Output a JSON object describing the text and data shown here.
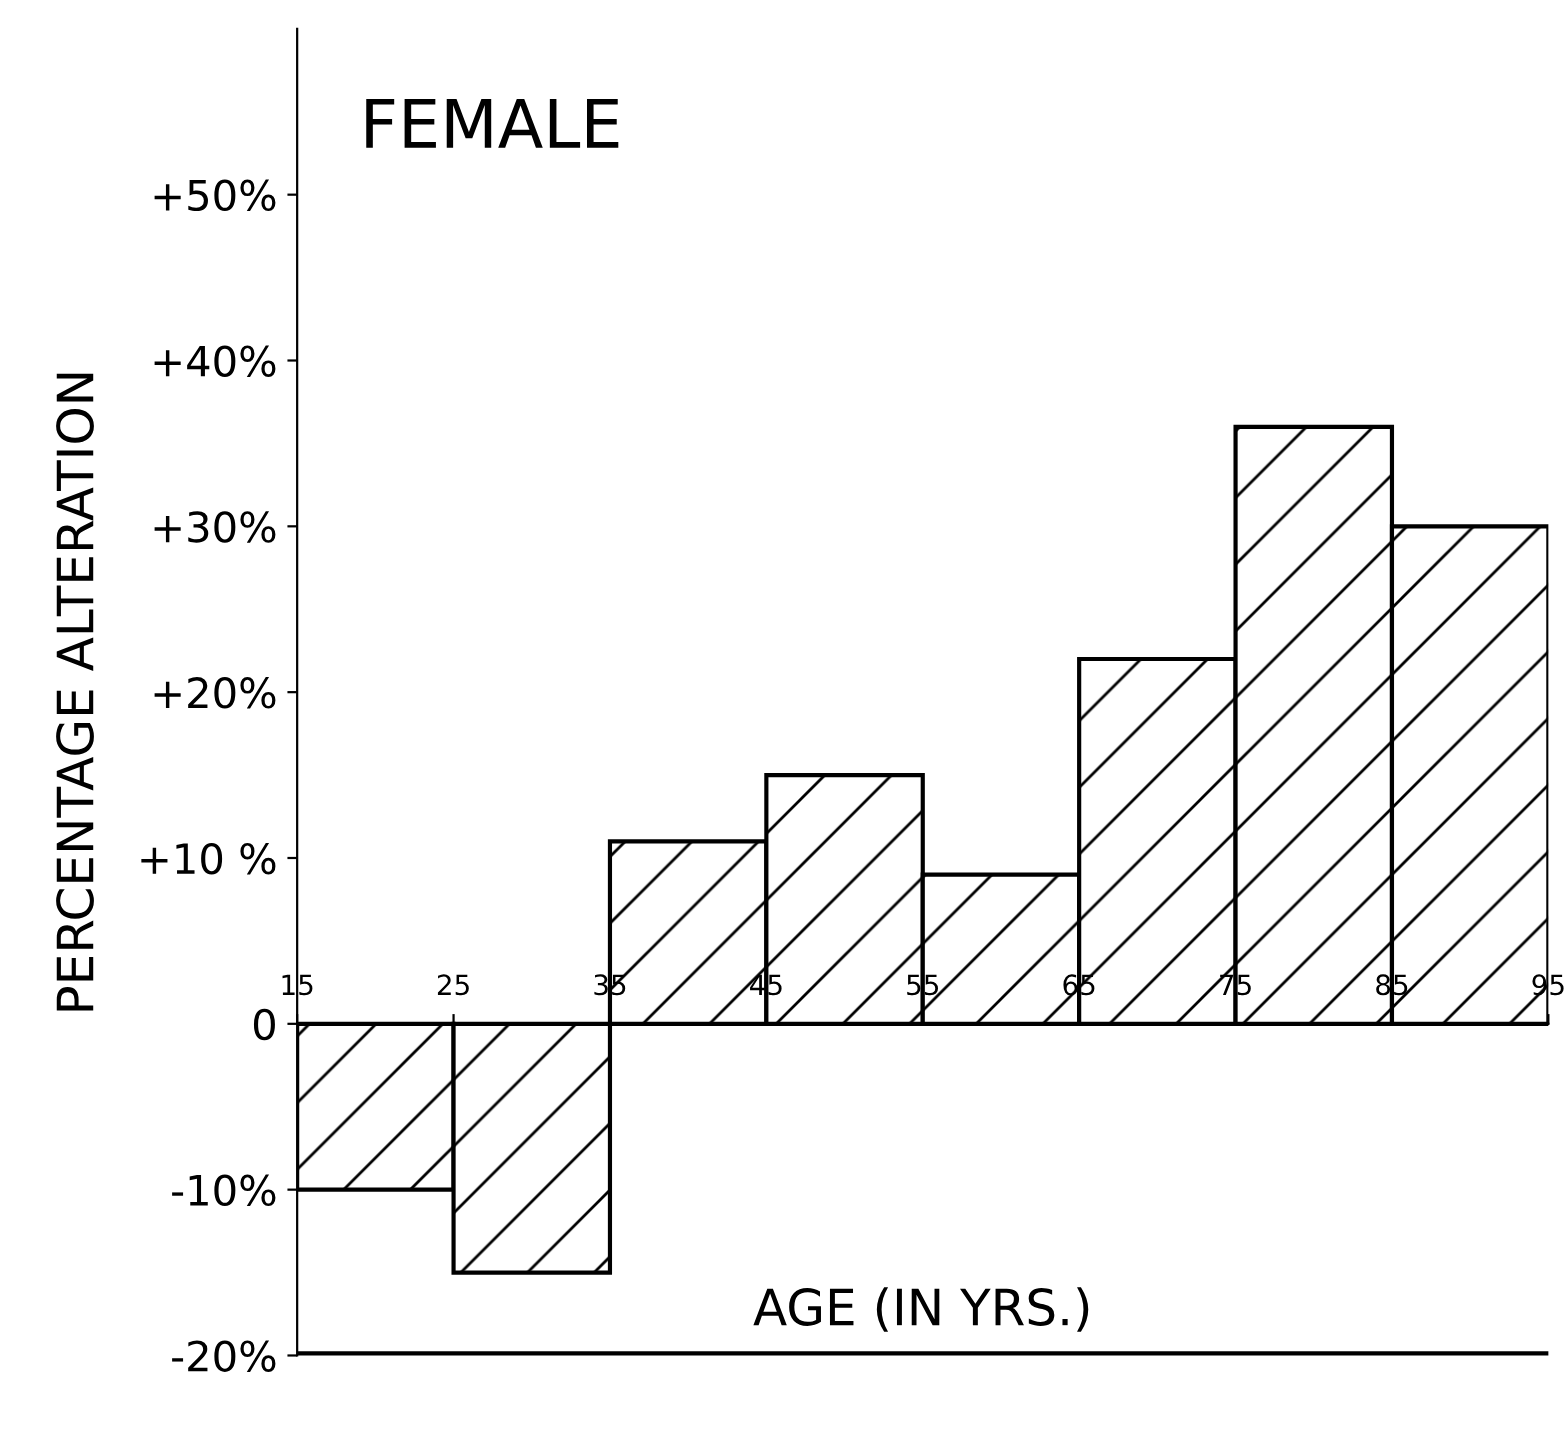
{
  "chart_data": {
    "type": "histogram",
    "title": "FEMALE",
    "xlabel": "AGE (IN YRS.)",
    "ylabel": "PERCENTAGE ALTERATION",
    "bins": [
      15,
      25,
      35,
      45,
      55,
      65,
      75,
      85,
      95
    ],
    "values": [
      -10,
      -15,
      11,
      15,
      9,
      22,
      36,
      30
    ],
    "color": "#000000",
    "xlim": [
      15,
      95
    ],
    "xticks": [
      15,
      25,
      35,
      45,
      55,
      65,
      75,
      85,
      95
    ],
    "ylim": [
      -20,
      60
    ],
    "yticks": [
      {
        "value": -20,
        "label": "-20%"
      },
      {
        "value": -10,
        "label": "-10%"
      },
      {
        "value": 0,
        "label": "0"
      },
      {
        "value": 10,
        "label": "+10 %"
      },
      {
        "value": 20,
        "label": "+20%"
      },
      {
        "value": 30,
        "label": "+30%"
      },
      {
        "value": 40,
        "label": "+40%"
      },
      {
        "value": 50,
        "label": "+50%"
      }
    ],
    "grid": false,
    "legend": false
  }
}
